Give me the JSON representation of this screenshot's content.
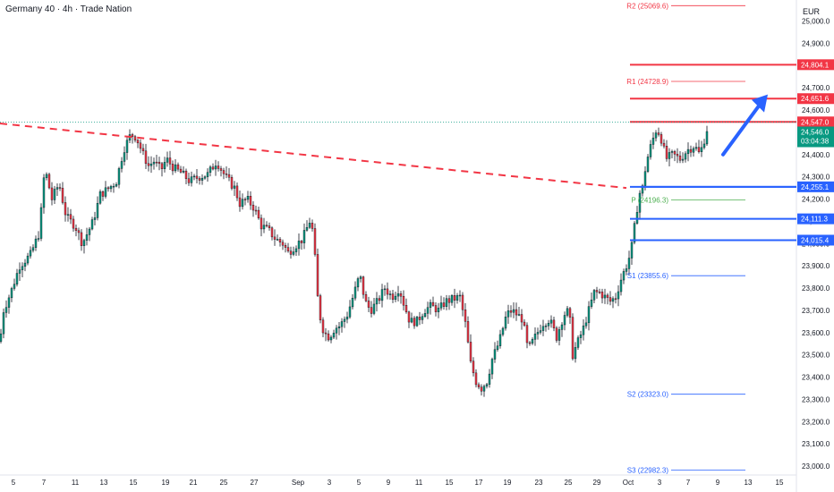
{
  "chart": {
    "title": "Germany 40 · 4h · Trade Nation",
    "currency": "EUR"
  },
  "chart_data": {
    "type": "candlestick",
    "symbol": "Germany 40",
    "timeframe": "4h",
    "ylim": [
      22950,
      25100
    ],
    "y_ticks": [
      "23,000.0",
      "23,100.0",
      "23,200.0",
      "23,300.0",
      "23,400.0",
      "23,500.0",
      "23,600.0",
      "23,700.0",
      "23,800.0",
      "23,900.0",
      "24,000.0",
      "24,100.0",
      "24,200.0",
      "24,300.0",
      "24,400.0",
      "24,500.0",
      "24,600.0",
      "24,700.0",
      "24,800.0",
      "24,900.0",
      "25,000.0"
    ],
    "x_ticks": [
      "5",
      "7",
      "11",
      "13",
      "15",
      "19",
      "21",
      "25",
      "27",
      "Sep",
      "3",
      "5",
      "9",
      "11",
      "15",
      "17",
      "19",
      "23",
      "25",
      "29",
      "Oct",
      "3",
      "7",
      "9",
      "13",
      "15"
    ],
    "path": [
      [
        0,
        23560
      ],
      [
        4,
        23700
      ],
      [
        12,
        23780
      ],
      [
        22,
        23900
      ],
      [
        34,
        23950
      ],
      [
        44,
        24050
      ],
      [
        50,
        24340
      ],
      [
        58,
        24200
      ],
      [
        66,
        24270
      ],
      [
        74,
        24120
      ],
      [
        84,
        24080
      ],
      [
        92,
        24000
      ],
      [
        104,
        24100
      ],
      [
        112,
        24220
      ],
      [
        122,
        24250
      ],
      [
        130,
        24280
      ],
      [
        138,
        24420
      ],
      [
        146,
        24490
      ],
      [
        152,
        24480
      ],
      [
        160,
        24400
      ],
      [
        166,
        24350
      ],
      [
        172,
        24370
      ],
      [
        180,
        24330
      ],
      [
        186,
        24380
      ],
      [
        194,
        24340
      ],
      [
        202,
        24320
      ],
      [
        212,
        24280
      ],
      [
        222,
        24300
      ],
      [
        232,
        24310
      ],
      [
        242,
        24370
      ],
      [
        252,
        24300
      ],
      [
        262,
        24250
      ],
      [
        268,
        24180
      ],
      [
        276,
        24200
      ],
      [
        284,
        24160
      ],
      [
        292,
        24080
      ],
      [
        300,
        24060
      ],
      [
        308,
        24020
      ],
      [
        316,
        24000
      ],
      [
        322,
        23960
      ],
      [
        330,
        23990
      ],
      [
        338,
        24020
      ],
      [
        346,
        24100
      ],
      [
        350,
        24050
      ],
      [
        356,
        23700
      ],
      [
        362,
        23600
      ],
      [
        368,
        23580
      ],
      [
        374,
        23620
      ],
      [
        380,
        23630
      ],
      [
        388,
        23680
      ],
      [
        396,
        23780
      ],
      [
        402,
        23860
      ],
      [
        408,
        23740
      ],
      [
        414,
        23700
      ],
      [
        422,
        23740
      ],
      [
        430,
        23800
      ],
      [
        438,
        23760
      ],
      [
        446,
        23800
      ],
      [
        452,
        23720
      ],
      [
        458,
        23650
      ],
      [
        466,
        23650
      ],
      [
        474,
        23700
      ],
      [
        482,
        23720
      ],
      [
        490,
        23700
      ],
      [
        498,
        23740
      ],
      [
        506,
        23750
      ],
      [
        514,
        23760
      ],
      [
        520,
        23640
      ],
      [
        526,
        23460
      ],
      [
        532,
        23380
      ],
      [
        538,
        23350
      ],
      [
        544,
        23380
      ],
      [
        550,
        23480
      ],
      [
        558,
        23560
      ],
      [
        566,
        23680
      ],
      [
        572,
        23700
      ],
      [
        578,
        23680
      ],
      [
        584,
        23660
      ],
      [
        590,
        23520
      ],
      [
        598,
        23580
      ],
      [
        606,
        23640
      ],
      [
        614,
        23660
      ],
      [
        622,
        23580
      ],
      [
        630,
        23680
      ],
      [
        636,
        23700
      ],
      [
        640,
        23500
      ],
      [
        646,
        23560
      ],
      [
        652,
        23620
      ],
      [
        658,
        23700
      ],
      [
        664,
        23780
      ],
      [
        670,
        23780
      ],
      [
        676,
        23760
      ],
      [
        682,
        23740
      ],
      [
        688,
        23760
      ],
      [
        694,
        23840
      ],
      [
        700,
        23900
      ],
      [
        705,
        23960
      ],
      [
        710,
        24100
      ],
      [
        714,
        24220
      ],
      [
        718,
        24250
      ],
      [
        722,
        24360
      ],
      [
        728,
        24450
      ],
      [
        734,
        24520
      ],
      [
        740,
        24460
      ],
      [
        744,
        24380
      ],
      [
        752,
        24400
      ],
      [
        760,
        24380
      ],
      [
        768,
        24420
      ],
      [
        776,
        24440
      ],
      [
        782,
        24400
      ],
      [
        788,
        24480
      ],
      [
        792,
        24547
      ]
    ],
    "current_price": "24,546.0",
    "countdown": "03:04:38",
    "horizontal_levels": [
      {
        "label": "24,804.1",
        "value": 24804.1,
        "color": "#f23645",
        "kind": "resistance"
      },
      {
        "label": "24,651.6",
        "value": 24651.6,
        "color": "#f23645",
        "kind": "resistance"
      },
      {
        "label": "24,547.0",
        "value": 24547.0,
        "color": "#f23645",
        "kind": "resistance"
      },
      {
        "label": "24,255.1",
        "value": 24255.1,
        "color": "#2962ff",
        "kind": "support"
      },
      {
        "label": "24,111.3",
        "value": 24111.3,
        "color": "#2962ff",
        "kind": "support"
      },
      {
        "label": "24,015.4",
        "value": 24015.4,
        "color": "#2962ff",
        "kind": "support"
      }
    ],
    "pivots": [
      {
        "label": "R2 (25069.6)",
        "value": 25069.6,
        "color": "#f23645"
      },
      {
        "label": "R1 (24728.9)",
        "value": 24728.9,
        "color": "#f23645"
      },
      {
        "label": "P (24196.3)",
        "value": 24196.3,
        "color": "#4caf50"
      },
      {
        "label": "S1 (23855.6)",
        "value": 23855.6,
        "color": "#2962ff"
      },
      {
        "label": "S2 (23323.0)",
        "value": 23323.0,
        "color": "#2962ff"
      },
      {
        "label": "S3 (22982.3)",
        "value": 22982.3,
        "color": "#2962ff"
      }
    ],
    "trendline": {
      "start": [
        0,
        24540
      ],
      "end": [
        700,
        24250
      ],
      "color": "#f23645",
      "style": "dashed"
    },
    "arrow": {
      "start": [
        808,
        24400
      ],
      "end": [
        858,
        24670
      ],
      "color": "#2962ff"
    },
    "colors": {
      "up": "#089981",
      "down": "#f23645",
      "candle": "#131722"
    }
  }
}
